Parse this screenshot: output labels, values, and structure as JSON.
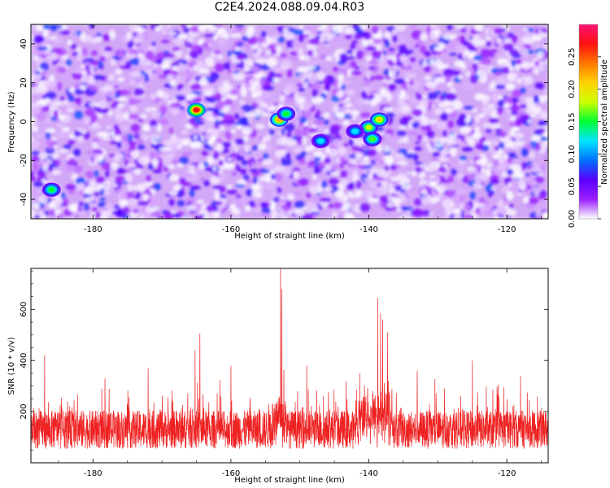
{
  "title": "C2E4.2024.088.09.04.R03",
  "chart_data": [
    {
      "type": "heatmap",
      "xlabel": "Height of straight line (km)",
      "ylabel": "Frequency (Hz)",
      "xlim": [
        -189,
        -114
      ],
      "ylim": [
        -50,
        50
      ],
      "xticks": [
        -180,
        -160,
        -140,
        -120
      ],
      "yticks": [
        -40,
        -20,
        0,
        20,
        40
      ],
      "colorbar": {
        "label": "Normalized spectral amplitude",
        "range": [
          0,
          0.3
        ],
        "ticks": [
          "0.00",
          "0.05",
          "0.10",
          "0.15",
          "0.20",
          "0.25"
        ],
        "colormap": [
          "#ffffff",
          "#9a20ff",
          "#5a00ff",
          "#0070ff",
          "#00e5ff",
          "#00ff33",
          "#ccff00",
          "#ffd200",
          "#ff7700",
          "#ff1010",
          "#ff1277"
        ]
      },
      "hotspots": [
        {
          "x": -165,
          "y": 6,
          "value": 0.27
        },
        {
          "x": -153,
          "y": 1,
          "value": 0.22
        },
        {
          "x": -152,
          "y": 4,
          "value": 0.15
        },
        {
          "x": -140,
          "y": -3,
          "value": 0.18
        },
        {
          "x": -138.5,
          "y": 1,
          "value": 0.2
        },
        {
          "x": -139.5,
          "y": -9,
          "value": 0.16
        },
        {
          "x": -142,
          "y": -5,
          "value": 0.12
        },
        {
          "x": -186,
          "y": -35,
          "value": 0.15
        },
        {
          "x": -147,
          "y": -10,
          "value": 0.12
        }
      ]
    },
    {
      "type": "line",
      "xlabel": "Height of straight line (km)",
      "ylabel": "SNR (10 * v/v)",
      "xlim": [
        -189,
        -114
      ],
      "ylim": [
        0,
        760
      ],
      "xticks": [
        -180,
        -160,
        -140,
        -120
      ],
      "yticks": [
        200,
        400,
        600
      ],
      "color": "#ee2222",
      "baseline_mean": 130,
      "peaks": [
        {
          "x": -152.8,
          "y": 760
        },
        {
          "x": -152.6,
          "y": 680
        },
        {
          "x": -138.7,
          "y": 645
        },
        {
          "x": -138.3,
          "y": 585
        },
        {
          "x": -138.0,
          "y": 560
        },
        {
          "x": -137.3,
          "y": 510
        },
        {
          "x": -164.5,
          "y": 505
        },
        {
          "x": -165.2,
          "y": 440
        },
        {
          "x": -187.0,
          "y": 420
        },
        {
          "x": -125.0,
          "y": 400
        },
        {
          "x": -149.0,
          "y": 380
        },
        {
          "x": -172.0,
          "y": 370
        },
        {
          "x": -160.0,
          "y": 380
        },
        {
          "x": -133.0,
          "y": 360
        },
        {
          "x": -118.0,
          "y": 340
        }
      ]
    }
  ]
}
